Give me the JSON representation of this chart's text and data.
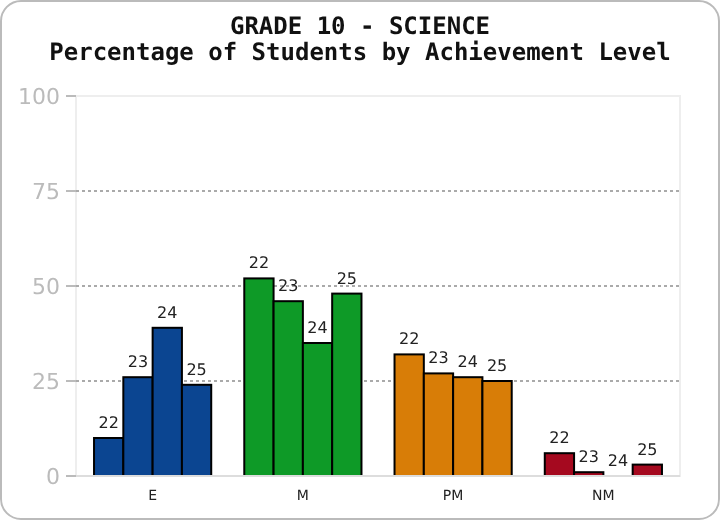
{
  "chart_data": {
    "type": "bar",
    "title": "GRADE 10 - SCIENCE",
    "subtitle": "Percentage of Students by Achievement Level",
    "categories": [
      "E",
      "M",
      "PM",
      "NM"
    ],
    "series": [
      {
        "name": "22",
        "colors": [
          "#0b4591",
          "#0e9a27",
          "#d87d07",
          "#a5091f"
        ],
        "values": [
          10,
          52,
          32,
          6
        ]
      },
      {
        "name": "23",
        "colors": [
          "#0b4591",
          "#0e9a27",
          "#d87d07",
          "#a5091f"
        ],
        "values": [
          26,
          46,
          27,
          1
        ]
      },
      {
        "name": "24",
        "colors": [
          "#0b4591",
          "#0e9a27",
          "#d87d07",
          "#a5091f"
        ],
        "values": [
          39,
          35,
          26,
          0
        ]
      },
      {
        "name": "25",
        "colors": [
          "#0b4591",
          "#0e9a27",
          "#d87d07",
          "#a5091f"
        ],
        "values": [
          24,
          48,
          25,
          3
        ]
      }
    ],
    "ylim": [
      0,
      100
    ],
    "yticks": [
      0,
      25,
      50,
      75,
      100
    ],
    "grid": "y"
  }
}
